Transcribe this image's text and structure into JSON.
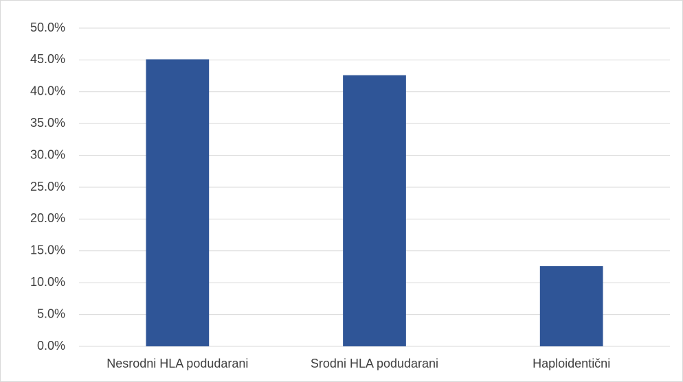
{
  "chart_data": {
    "type": "bar",
    "categories": [
      "Nesrodni HLA podudarani",
      "Srodni HLA podudarani",
      "Haploidentični"
    ],
    "values": [
      45.1,
      42.6,
      12.6
    ],
    "color": "#2f5597",
    "ylim": [
      0,
      50
    ],
    "yticks": [
      {
        "value": 0,
        "label": "0.0%"
      },
      {
        "value": 5,
        "label": "5.0%"
      },
      {
        "value": 10,
        "label": "10.0%"
      },
      {
        "value": 15,
        "label": "15.0%"
      },
      {
        "value": 20,
        "label": "20.0%"
      },
      {
        "value": 25,
        "label": "25.0%"
      },
      {
        "value": 30,
        "label": "30.0%"
      },
      {
        "value": 35,
        "label": "35.0%"
      },
      {
        "value": 40,
        "label": "40.0%"
      },
      {
        "value": 45,
        "label": "45.0%"
      },
      {
        "value": 50,
        "label": "50.0%"
      }
    ],
    "grid": true
  }
}
